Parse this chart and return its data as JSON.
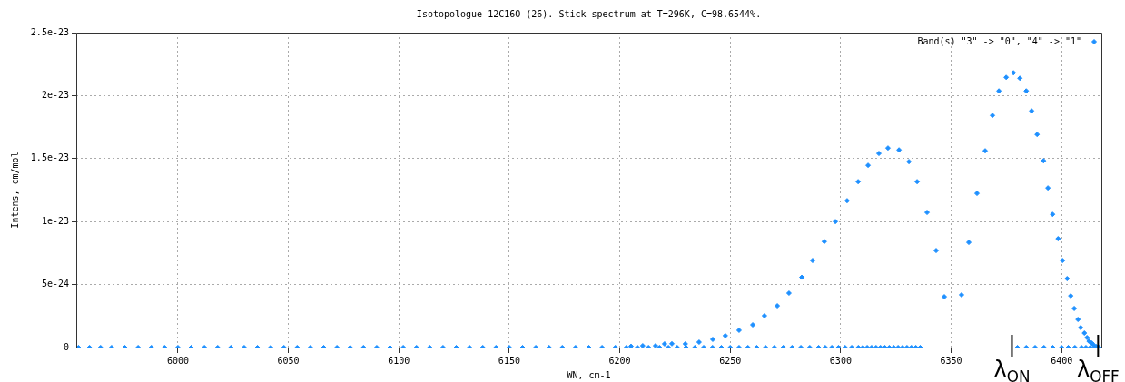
{
  "chart_data": {
    "type": "scatter",
    "title": "Isotopologue 12C16O (26). Stick spectrum at T=296K, C=98.6544%.",
    "xlabel": "WN, cm-1",
    "ylabel": "Intens, cm/mol",
    "series": [
      {
        "name": "Band(s) \"3\" -> \"0\", \"4\" -> \"1\"",
        "color": "#1e90ff",
        "x": [
          6205.1,
          6210.4,
          6216.2,
          6220.3,
          6223.6,
          6229.7,
          6235.9,
          6242.1,
          6247.8,
          6254.0,
          6260.2,
          6265.5,
          6271.3,
          6276.6,
          6282.4,
          6287.3,
          6292.6,
          6297.6,
          6302.9,
          6307.9,
          6312.4,
          6317.3,
          6321.4,
          6326.4,
          6330.9,
          6334.6,
          6339.1,
          6343.2,
          6346.9,
          6354.7,
          6358.0,
          6361.7,
          6365.4,
          6368.7,
          6371.6,
          6374.9,
          6378.2,
          6381.1,
          6384.0,
          6386.4,
          6388.9,
          6391.8,
          6393.8,
          6395.9,
          6398.4,
          6400.4,
          6402.5,
          6404.1,
          6405.7,
          6407.4,
          6408.6,
          6410.3,
          6411.5,
          6412.4,
          6413.6,
          6414.4,
          6415.7,
          5955,
          5960,
          5965,
          5970,
          5976,
          5982,
          5988,
          5994,
          6000,
          6006,
          6012,
          6018,
          6024,
          6030,
          6036,
          6042,
          6048,
          6054,
          6060,
          6066,
          6072,
          6078,
          6084,
          6090,
          6096,
          6102,
          6108,
          6114,
          6120,
          6126,
          6132,
          6138,
          6144,
          6150,
          6156,
          6162,
          6168,
          6174,
          6180,
          6186,
          6192,
          6198,
          6203,
          6208,
          6213,
          6218,
          6222,
          6226,
          6230,
          6234,
          6238,
          6242,
          6246,
          6250,
          6254,
          6258,
          6262,
          6266,
          6270,
          6274,
          6278,
          6282,
          6286,
          6290,
          6293,
          6296,
          6299,
          6302,
          6305,
          6308,
          6310,
          6312,
          6314,
          6316,
          6318,
          6320,
          6322,
          6324,
          6326,
          6328,
          6330,
          6332,
          6334,
          6336,
          6380,
          6384,
          6388,
          6392,
          6396,
          6400,
          6403,
          6406,
          6409,
          6411,
          6413,
          6415,
          6417
        ],
        "values": [
          1e-25,
          1.4e-25,
          1.4e-25,
          2.9e-25,
          3e-25,
          2.9e-25,
          4.3e-25,
          6.5e-25,
          9.4e-25,
          1.37e-24,
          1.8e-24,
          2.52e-24,
          3.31e-24,
          4.32e-24,
          5.58e-24,
          6.91e-24,
          8.42e-24,
          1e-23,
          1.166e-23,
          1.317e-23,
          1.447e-23,
          1.541e-23,
          1.584e-23,
          1.569e-23,
          1.476e-23,
          1.317e-23,
          1.073e-23,
          7.7e-24,
          4.03e-24,
          4.18e-24,
          8.35e-24,
          1.224e-23,
          1.562e-23,
          1.843e-23,
          2.037e-23,
          2.145e-23,
          2.181e-23,
          2.138e-23,
          2.037e-23,
          1.879e-23,
          1.692e-23,
          1.483e-23,
          1.267e-23,
          1.058e-23,
          8.64e-24,
          6.91e-24,
          5.47e-24,
          4.1e-24,
          3.1e-24,
          2.23e-24,
          1.58e-24,
          1.15e-24,
          7.9e-25,
          5e-25,
          3.6e-25,
          2.2e-25,
          7e-26,
          0,
          0,
          0,
          0,
          0,
          0,
          0,
          0,
          0,
          0,
          0,
          0,
          0,
          0,
          0,
          0,
          0,
          0,
          0,
          0,
          0,
          0,
          0,
          0,
          0,
          0,
          0,
          0,
          0,
          0,
          0,
          0,
          0,
          0,
          0,
          0,
          0,
          0,
          0,
          0,
          0,
          0,
          0,
          0,
          0,
          0,
          0,
          0,
          0,
          0,
          0,
          0,
          0,
          0,
          0,
          0,
          0,
          0,
          0,
          0,
          0,
          0,
          0,
          0,
          0,
          0,
          0,
          0,
          0,
          0,
          0,
          0,
          0,
          0,
          0,
          0,
          0,
          0,
          0,
          0,
          0,
          0,
          0,
          0,
          0,
          0,
          0,
          0,
          0,
          0,
          0,
          0,
          0,
          0,
          0,
          0,
          0
        ]
      }
    ],
    "xlim": [
      5954,
      6418
    ],
    "xticks": [
      6000,
      6050,
      6100,
      6150,
      6200,
      6250,
      6300,
      6350,
      6400
    ],
    "ylim": [
      0,
      2.5e-23
    ],
    "yticks": [
      {
        "value": 0,
        "label": "0"
      },
      {
        "value": 5e-24,
        "label": "5e-24"
      },
      {
        "value": 1e-23,
        "label": "1e-23"
      },
      {
        "value": 1.5e-23,
        "label": "1.5e-23"
      },
      {
        "value": 2e-23,
        "label": "2e-23"
      },
      {
        "value": 2.5e-23,
        "label": "2.5e-23"
      }
    ],
    "grid": true,
    "legend": "top right",
    "marker": "diamond",
    "annotations": [
      {
        "text": "λ$_{ON}$",
        "x": 6377.5,
        "y": 0
      },
      {
        "text": "λ$_{OFF}$",
        "x": 6416.5,
        "y": 0
      }
    ]
  }
}
